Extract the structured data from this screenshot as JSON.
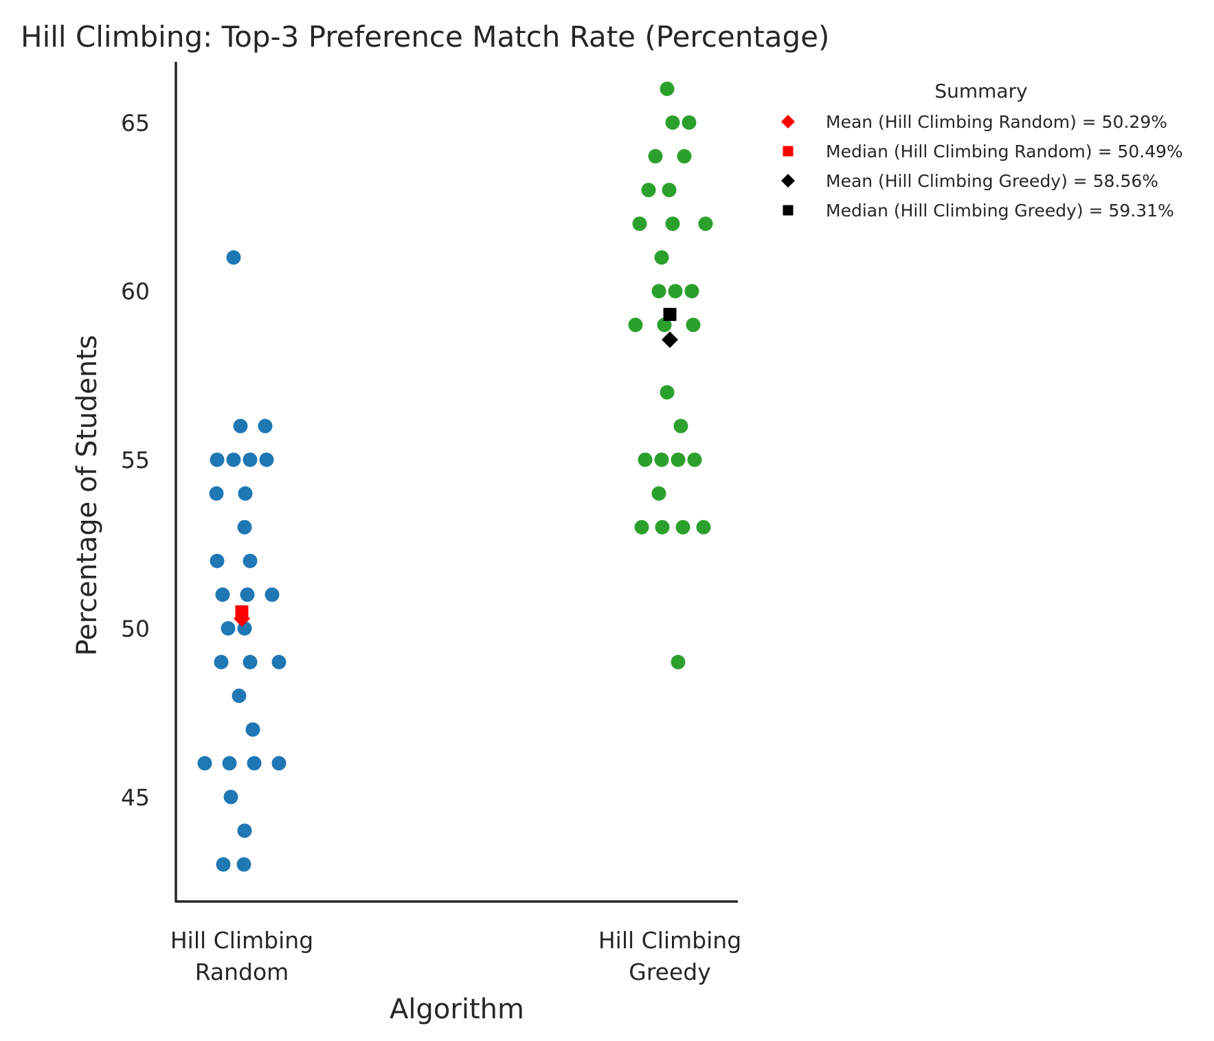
{
  "chart_data": {
    "type": "scatter",
    "title": "Hill Climbing: Top-3 Preference Match Rate (Percentage)",
    "xlabel": "Algorithm",
    "ylabel": "Percentage of Students",
    "categories": [
      [
        "Hill Climbing",
        "Random"
      ],
      [
        "Hill Climbing",
        "Greedy"
      ]
    ],
    "yticks": [
      "45",
      "50",
      "55",
      "60",
      "65"
    ],
    "ylim": [
      41.9,
      66.8
    ],
    "grid": false,
    "series": [
      {
        "color": "#1f77b4",
        "values": [
          61,
          56,
          56,
          55,
          55,
          55,
          55,
          54,
          54,
          53,
          52,
          52,
          51,
          51,
          51,
          50,
          50,
          49,
          49,
          49,
          48,
          47,
          46,
          46,
          46,
          46,
          45,
          44,
          43,
          43
        ]
      },
      {
        "color": "#2ca02c",
        "values": [
          66,
          65,
          65,
          64,
          64,
          63,
          63,
          62,
          62,
          62,
          61,
          60,
          60,
          60,
          59,
          59,
          59,
          57,
          56,
          55,
          55,
          55,
          55,
          54,
          53,
          53,
          53,
          53,
          49
        ]
      }
    ],
    "summary_markers": [
      {
        "category": 0,
        "stat": "mean",
        "value": 50.29,
        "color": "#ff0000",
        "marker": "diamond"
      },
      {
        "category": 0,
        "stat": "median",
        "value": 50.49,
        "color": "#ff0000",
        "marker": "square"
      },
      {
        "category": 1,
        "stat": "mean",
        "value": 58.56,
        "color": "#000000",
        "marker": "diamond"
      },
      {
        "category": 1,
        "stat": "median",
        "value": 59.31,
        "color": "#000000",
        "marker": "square"
      }
    ],
    "legend": {
      "title": "Summary",
      "placement": "outside-upper-right",
      "entries": [
        {
          "label": "Mean (Hill Climbing Random) = 50.29%",
          "color": "#ff0000",
          "marker": "diamond"
        },
        {
          "label": "Median (Hill Climbing Random) = 50.49%",
          "color": "#ff0000",
          "marker": "square"
        },
        {
          "label": "Mean (Hill Climbing Greedy) = 58.56%",
          "color": "#000000",
          "marker": "diamond"
        },
        {
          "label": "Median (Hill Climbing Greedy) = 59.31%",
          "color": "#000000",
          "marker": "square"
        }
      ]
    }
  }
}
